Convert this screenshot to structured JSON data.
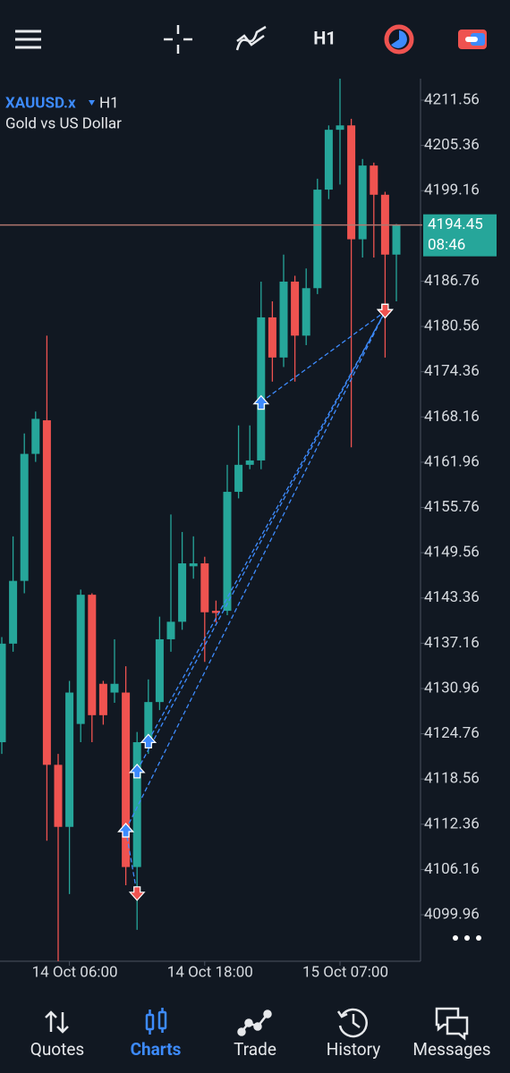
{
  "top_bar": {
    "timeframe": "H1"
  },
  "chart_data": {
    "type": "candlestick",
    "symbol": "XAUUSD.x",
    "timeframe": "H1",
    "description": "Gold vs US Dollar",
    "open": [
      4123.6,
      4137.1,
      4145.7,
      4163.1,
      4167.7,
      4120.5,
      4112.0,
      4126.1,
      4143.8,
      4131.6,
      4130.4,
      4130.4,
      4106.5,
      4123.6,
      4129.1,
      4137.7,
      4140.1,
      4147.7,
      4148.1,
      4141.6,
      4141.6,
      4157.9,
      4161.6,
      4162.2,
      4181.8,
      4176.3,
      4186.7,
      4179.3,
      4185.8,
      4199.3,
      4207.5,
      4208.1,
      4192.5,
      4202.6,
      4198.6,
      4190.4
    ],
    "high": [
      4138.0,
      4151.8,
      4165.9,
      4168.9,
      4179.3,
      4122.0,
      4132.0,
      4144.5,
      4144.0,
      4132.0,
      4137.7,
      4134.0,
      4125.0,
      4132.2,
      4140.8,
      4154.8,
      4152.4,
      4151.8,
      4149.0,
      4143.0,
      4161.6,
      4167.0,
      4167.0,
      4186.7,
      4184.0,
      4190.4,
      4187.5,
      4188.5,
      4200.8,
      4208.1,
      4214.5,
      4209.0,
      4203.5,
      4203.0,
      4199.0,
      4194.6
    ],
    "low": [
      4122.0,
      4136.0,
      4144.0,
      4162.0,
      4110.1,
      4093.6,
      4102.8,
      4123.6,
      4123.6,
      4126.0,
      4129.0,
      4104.0,
      4097.9,
      4122.0,
      4128.0,
      4136.0,
      4139.0,
      4146.0,
      4134.6,
      4140.0,
      4141.0,
      4157.0,
      4161.0,
      4161.0,
      4173.0,
      4175.0,
      4173.0,
      4178.0,
      4185.0,
      4198.0,
      4200.0,
      4164.0,
      4190.0,
      4190.0,
      4176.3,
      4184.0
    ],
    "close": [
      4137.1,
      4145.7,
      4163.1,
      4167.9,
      4120.5,
      4112.0,
      4130.4,
      4143.8,
      4127.3,
      4127.3,
      4131.6,
      4106.5,
      4123.6,
      4129.1,
      4137.7,
      4140.1,
      4148.1,
      4148.1,
      4141.4,
      4141.3,
      4157.9,
      4161.6,
      4162.2,
      4181.8,
      4176.3,
      4186.7,
      4179.3,
      4185.8,
      4199.3,
      4207.5,
      4208.1,
      4192.5,
      4202.6,
      4198.6,
      4190.4,
      4194.45
    ],
    "up_color": "#26a69a",
    "down_color": "#ef5350",
    "ylim": [
      4093.96,
      4214.5
    ],
    "yticks": [
      4211.56,
      4205.36,
      4199.16,
      4186.76,
      4180.56,
      4174.36,
      4168.16,
      4161.96,
      4155.76,
      4149.56,
      4143.36,
      4137.16,
      4130.96,
      4124.76,
      4118.56,
      4112.36,
      4106.16,
      4099.96
    ],
    "xticks": [
      {
        "value": 6,
        "label": "14 Oct 06:00"
      },
      {
        "value": 18,
        "label": "14 Oct 18:00"
      },
      {
        "value": 30,
        "label": "15 Oct 07:00"
      }
    ],
    "current_price": 4194.45,
    "countdown": "08:46",
    "trade_color": "#3d8bfd",
    "trades": [
      {
        "open_index": 11,
        "open": 4111.6,
        "close_index": 12,
        "close": 4102.8
      },
      {
        "open_index": 11,
        "open": 4111.6,
        "close_index": 34,
        "close": 4182.6
      },
      {
        "open_index": 12,
        "open": 4119.7,
        "close_index": 34,
        "close": 4182.6
      },
      {
        "open_index": 13,
        "open": 4123.8,
        "close_index": 34,
        "close": 4182.6
      },
      {
        "open_index": 23,
        "open": 4170.2,
        "close_index": 34,
        "close": 4182.6
      }
    ]
  },
  "nav": {
    "items": [
      "Quotes",
      "Charts",
      "Trade",
      "History",
      "Messages"
    ],
    "active": 1
  }
}
